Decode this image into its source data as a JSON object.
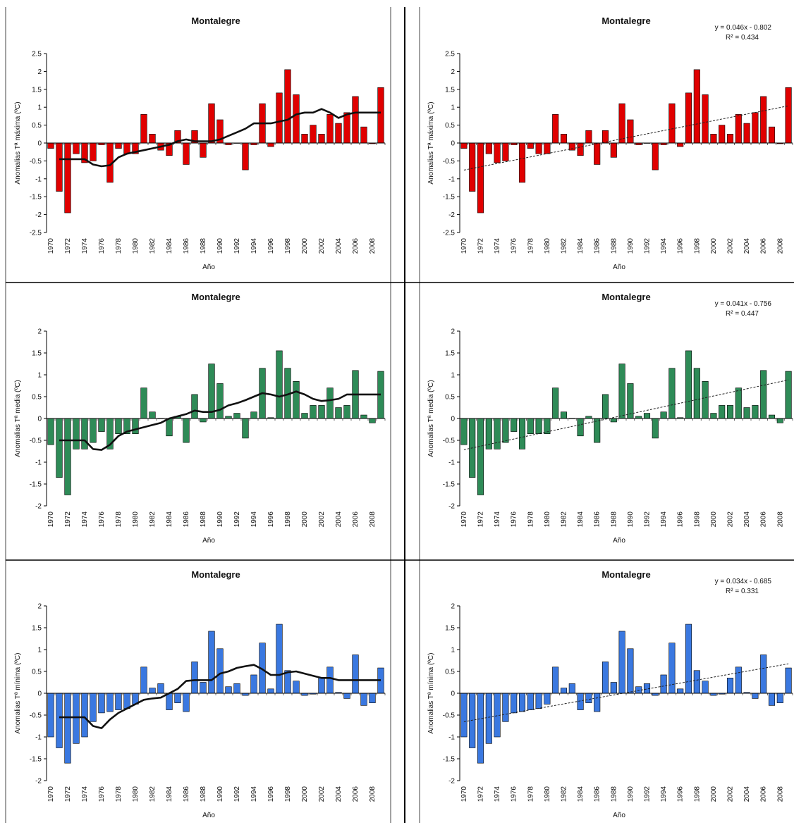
{
  "chart_data": [
    {
      "id": "tmax-mm",
      "type": "bar",
      "title": "Montalegre",
      "xlabel": "Año",
      "ylabel": "Anomalias Tª máxima (ºC)",
      "ylim": [
        -2.5,
        2.5
      ],
      "yticks": [
        -2.5,
        -2,
        -1.5,
        -1,
        -0.5,
        0,
        0.5,
        1,
        1.5,
        2,
        2.5
      ],
      "color": "#e00000",
      "x": [
        1970,
        1971,
        1972,
        1973,
        1974,
        1975,
        1976,
        1977,
        1978,
        1979,
        1980,
        1981,
        1982,
        1983,
        1984,
        1985,
        1986,
        1987,
        1988,
        1989,
        1990,
        1991,
        1992,
        1993,
        1994,
        1995,
        1996,
        1997,
        1998,
        1999,
        2000,
        2001,
        2002,
        2003,
        2004,
        2005,
        2006,
        2007,
        2008,
        2009
      ],
      "xtick_labels": [
        "1970",
        "1972",
        "1974",
        "1976",
        "1978",
        "1980",
        "1982",
        "1984",
        "1986",
        "1988",
        "1990",
        "1992",
        "1994",
        "1996",
        "1998",
        "2000",
        "2002",
        "2004",
        "2006",
        "2008"
      ],
      "values": [
        -0.15,
        -1.35,
        -1.95,
        -0.3,
        -0.55,
        -0.5,
        -0.05,
        -1.1,
        -0.15,
        -0.3,
        -0.3,
        0.8,
        0.25,
        -0.2,
        -0.35,
        0.35,
        -0.6,
        0.35,
        -0.4,
        1.1,
        0.65,
        -0.05,
        0.0,
        -0.75,
        -0.05,
        1.1,
        -0.1,
        1.4,
        2.05,
        1.35,
        0.25,
        0.5,
        0.25,
        0.8,
        0.55,
        0.85,
        1.3,
        0.45,
        -0.02,
        1.55
      ],
      "moving_average": [
        null,
        -0.45,
        -0.45,
        -0.45,
        -0.45,
        -0.6,
        -0.65,
        -0.62,
        -0.4,
        -0.3,
        -0.25,
        -0.2,
        -0.15,
        -0.1,
        -0.05,
        0.05,
        0.1,
        0.05,
        0.05,
        0.05,
        0.1,
        0.2,
        0.3,
        0.4,
        0.55,
        0.55,
        0.55,
        0.6,
        0.65,
        0.8,
        0.85,
        0.85,
        0.95,
        0.85,
        0.7,
        0.8,
        0.85,
        0.85,
        0.85,
        0.85
      ],
      "trendline": null
    },
    {
      "id": "tmax-trend",
      "type": "bar",
      "title": "Montalegre",
      "xlabel": "Año",
      "ylabel": "Anomalias Tª máxima (ºC)",
      "ylim": [
        -2.5,
        2.5
      ],
      "yticks": [
        -2.5,
        -2,
        -1.5,
        -1,
        -0.5,
        0,
        0.5,
        1,
        1.5,
        2,
        2.5
      ],
      "color": "#e00000",
      "x": [
        1970,
        1971,
        1972,
        1973,
        1974,
        1975,
        1976,
        1977,
        1978,
        1979,
        1980,
        1981,
        1982,
        1983,
        1984,
        1985,
        1986,
        1987,
        1988,
        1989,
        1990,
        1991,
        1992,
        1993,
        1994,
        1995,
        1996,
        1997,
        1998,
        1999,
        2000,
        2001,
        2002,
        2003,
        2004,
        2005,
        2006,
        2007,
        2008,
        2009
      ],
      "xtick_labels": [
        "1970",
        "1972",
        "1974",
        "1976",
        "1978",
        "1980",
        "1982",
        "1984",
        "1986",
        "1988",
        "1990",
        "1992",
        "1994",
        "1996",
        "1998",
        "2000",
        "2002",
        "2004",
        "2006",
        "2008"
      ],
      "values": [
        -0.15,
        -1.35,
        -1.95,
        -0.3,
        -0.55,
        -0.5,
        -0.05,
        -1.1,
        -0.15,
        -0.3,
        -0.3,
        0.8,
        0.25,
        -0.2,
        -0.35,
        0.35,
        -0.6,
        0.35,
        -0.4,
        1.1,
        0.65,
        -0.05,
        0.0,
        -0.75,
        -0.05,
        1.1,
        -0.1,
        1.4,
        2.05,
        1.35,
        0.25,
        0.5,
        0.25,
        0.8,
        0.55,
        0.85,
        1.3,
        0.45,
        -0.02,
        1.55
      ],
      "moving_average": null,
      "trendline": {
        "slope": 0.046,
        "intercept": -0.802
      },
      "equation": "y = 0.046x - 0.802",
      "r2": "R² = 0.434"
    },
    {
      "id": "tmed-mm",
      "type": "bar",
      "title": "Montalegre",
      "xlabel": "Año",
      "ylabel": "Anomalias Tª media (ºC)",
      "ylim": [
        -2,
        2
      ],
      "yticks": [
        -2,
        -1.5,
        -1,
        -0.5,
        0,
        0.5,
        1,
        1.5,
        2
      ],
      "color": "#2e8b57",
      "x": [
        1970,
        1971,
        1972,
        1973,
        1974,
        1975,
        1976,
        1977,
        1978,
        1979,
        1980,
        1981,
        1982,
        1983,
        1984,
        1985,
        1986,
        1987,
        1988,
        1989,
        1990,
        1991,
        1992,
        1993,
        1994,
        1995,
        1996,
        1997,
        1998,
        1999,
        2000,
        2001,
        2002,
        2003,
        2004,
        2005,
        2006,
        2007,
        2008,
        2009
      ],
      "xtick_labels": [
        "1970",
        "1972",
        "1974",
        "1976",
        "1978",
        "1980",
        "1982",
        "1984",
        "1986",
        "1988",
        "1990",
        "1992",
        "1994",
        "1996",
        "1998",
        "2000",
        "2002",
        "2004",
        "2006",
        "2008"
      ],
      "values": [
        -0.6,
        -1.35,
        -1.75,
        -0.7,
        -0.7,
        -0.55,
        -0.3,
        -0.7,
        -0.35,
        -0.35,
        -0.35,
        0.7,
        0.15,
        0.0,
        -0.4,
        0.05,
        -0.55,
        0.55,
        -0.08,
        1.25,
        0.8,
        0.05,
        0.12,
        -0.45,
        0.15,
        1.15,
        0.02,
        1.55,
        1.15,
        0.85,
        0.12,
        0.3,
        0.3,
        0.7,
        0.25,
        0.3,
        1.1,
        0.08,
        -0.1,
        1.08
      ],
      "moving_average": [
        null,
        -0.5,
        -0.5,
        -0.5,
        -0.5,
        -0.7,
        -0.72,
        -0.6,
        -0.4,
        -0.3,
        -0.25,
        -0.2,
        -0.15,
        -0.1,
        0.0,
        0.05,
        0.1,
        0.18,
        0.15,
        0.15,
        0.2,
        0.3,
        0.35,
        0.42,
        0.5,
        0.58,
        0.55,
        0.5,
        0.55,
        0.62,
        0.55,
        0.45,
        0.4,
        0.42,
        0.45,
        0.55,
        0.55,
        0.55,
        0.55,
        0.55
      ],
      "trendline": null
    },
    {
      "id": "tmed-trend",
      "type": "bar",
      "title": "Montalegre",
      "xlabel": "Año",
      "ylabel": "Anomalias Tª media (ºC)",
      "ylim": [
        -2,
        2
      ],
      "yticks": [
        -2,
        -1.5,
        -1,
        -0.5,
        0,
        0.5,
        1,
        1.5,
        2
      ],
      "color": "#2e8b57",
      "x": [
        1970,
        1971,
        1972,
        1973,
        1974,
        1975,
        1976,
        1977,
        1978,
        1979,
        1980,
        1981,
        1982,
        1983,
        1984,
        1985,
        1986,
        1987,
        1988,
        1989,
        1990,
        1991,
        1992,
        1993,
        1994,
        1995,
        1996,
        1997,
        1998,
        1999,
        2000,
        2001,
        2002,
        2003,
        2004,
        2005,
        2006,
        2007,
        2008,
        2009
      ],
      "xtick_labels": [
        "1970",
        "1972",
        "1974",
        "1976",
        "1978",
        "1980",
        "1982",
        "1984",
        "1986",
        "1988",
        "1990",
        "1992",
        "1994",
        "1996",
        "1998",
        "2000",
        "2002",
        "2004",
        "2006",
        "2008"
      ],
      "values": [
        -0.6,
        -1.35,
        -1.75,
        -0.7,
        -0.7,
        -0.55,
        -0.3,
        -0.7,
        -0.35,
        -0.35,
        -0.35,
        0.7,
        0.15,
        0.0,
        -0.4,
        0.05,
        -0.55,
        0.55,
        -0.08,
        1.25,
        0.8,
        0.05,
        0.12,
        -0.45,
        0.15,
        1.15,
        0.02,
        1.55,
        1.15,
        0.85,
        0.12,
        0.3,
        0.3,
        0.7,
        0.25,
        0.3,
        1.1,
        0.08,
        -0.1,
        1.08
      ],
      "moving_average": null,
      "trendline": {
        "slope": 0.041,
        "intercept": -0.756
      },
      "equation": "y = 0.041x - 0.756",
      "r2": "R² = 0.447"
    },
    {
      "id": "tmin-mm",
      "type": "bar",
      "title": "Montalegre",
      "xlabel": "Año",
      "ylabel": "Anomalias Tª mínima (ºC)",
      "ylim": [
        -2,
        2
      ],
      "yticks": [
        -2,
        -1.5,
        -1,
        -0.5,
        0,
        0.5,
        1,
        1.5,
        2
      ],
      "color": "#3a78e0",
      "x": [
        1970,
        1971,
        1972,
        1973,
        1974,
        1975,
        1976,
        1977,
        1978,
        1979,
        1980,
        1981,
        1982,
        1983,
        1984,
        1985,
        1986,
        1987,
        1988,
        1989,
        1990,
        1991,
        1992,
        1993,
        1994,
        1995,
        1996,
        1997,
        1998,
        1999,
        2000,
        2001,
        2002,
        2003,
        2004,
        2005,
        2006,
        2007,
        2008,
        2009
      ],
      "xtick_labels": [
        "1970",
        "1972",
        "1974",
        "1976",
        "1978",
        "1980",
        "1982",
        "1984",
        "1986",
        "1988",
        "1990",
        "1992",
        "1994",
        "1996",
        "1998",
        "2000",
        "2002",
        "2004",
        "2006",
        "2008"
      ],
      "values": [
        -1.0,
        -1.25,
        -1.6,
        -1.15,
        -1.0,
        -0.65,
        -0.45,
        -0.42,
        -0.38,
        -0.35,
        -0.25,
        0.6,
        0.12,
        0.22,
        -0.38,
        -0.22,
        -0.42,
        0.72,
        0.25,
        1.42,
        1.02,
        0.15,
        0.22,
        -0.05,
        0.42,
        1.15,
        0.1,
        1.58,
        0.52,
        0.28,
        -0.05,
        -0.02,
        0.35,
        0.6,
        0.02,
        -0.12,
        0.88,
        -0.28,
        -0.22,
        0.58
      ],
      "moving_average": [
        null,
        -0.55,
        -0.55,
        -0.55,
        -0.55,
        -0.75,
        -0.8,
        -0.6,
        -0.45,
        -0.35,
        -0.25,
        -0.15,
        -0.12,
        -0.1,
        0.0,
        0.1,
        0.28,
        0.3,
        0.3,
        0.3,
        0.45,
        0.5,
        0.58,
        0.62,
        0.65,
        0.55,
        0.42,
        0.42,
        0.48,
        0.5,
        0.45,
        0.4,
        0.35,
        0.35,
        0.3,
        0.3,
        0.3,
        0.3,
        0.3,
        0.3
      ],
      "trendline": null
    },
    {
      "id": "tmin-trend",
      "type": "bar",
      "title": "Montalegre",
      "xlabel": "Año",
      "ylabel": "Anomalias Tª mínima (ºC)",
      "ylim": [
        -2,
        2
      ],
      "yticks": [
        -2,
        -1.5,
        -1,
        -0.5,
        0,
        0.5,
        1,
        1.5,
        2
      ],
      "color": "#3a78e0",
      "x": [
        1970,
        1971,
        1972,
        1973,
        1974,
        1975,
        1976,
        1977,
        1978,
        1979,
        1980,
        1981,
        1982,
        1983,
        1984,
        1985,
        1986,
        1987,
        1988,
        1989,
        1990,
        1991,
        1992,
        1993,
        1994,
        1995,
        1996,
        1997,
        1998,
        1999,
        2000,
        2001,
        2002,
        2003,
        2004,
        2005,
        2006,
        2007,
        2008,
        2009
      ],
      "xtick_labels": [
        "1970",
        "1972",
        "1974",
        "1976",
        "1978",
        "1980",
        "1982",
        "1984",
        "1986",
        "1988",
        "1990",
        "1992",
        "1994",
        "1996",
        "1998",
        "2000",
        "2002",
        "2004",
        "2006",
        "2008"
      ],
      "values": [
        -1.0,
        -1.25,
        -1.6,
        -1.15,
        -1.0,
        -0.65,
        -0.45,
        -0.42,
        -0.38,
        -0.35,
        -0.25,
        0.6,
        0.12,
        0.22,
        -0.38,
        -0.22,
        -0.42,
        0.72,
        0.25,
        1.42,
        1.02,
        0.15,
        0.22,
        -0.05,
        0.42,
        1.15,
        0.1,
        1.58,
        0.52,
        0.28,
        -0.05,
        -0.02,
        0.35,
        0.6,
        0.02,
        -0.12,
        0.88,
        -0.28,
        -0.22,
        0.58
      ],
      "moving_average": null,
      "trendline": {
        "slope": 0.034,
        "intercept": -0.685
      },
      "equation": "y = 0.034x - 0.685",
      "r2": "R² = 0.331"
    }
  ]
}
